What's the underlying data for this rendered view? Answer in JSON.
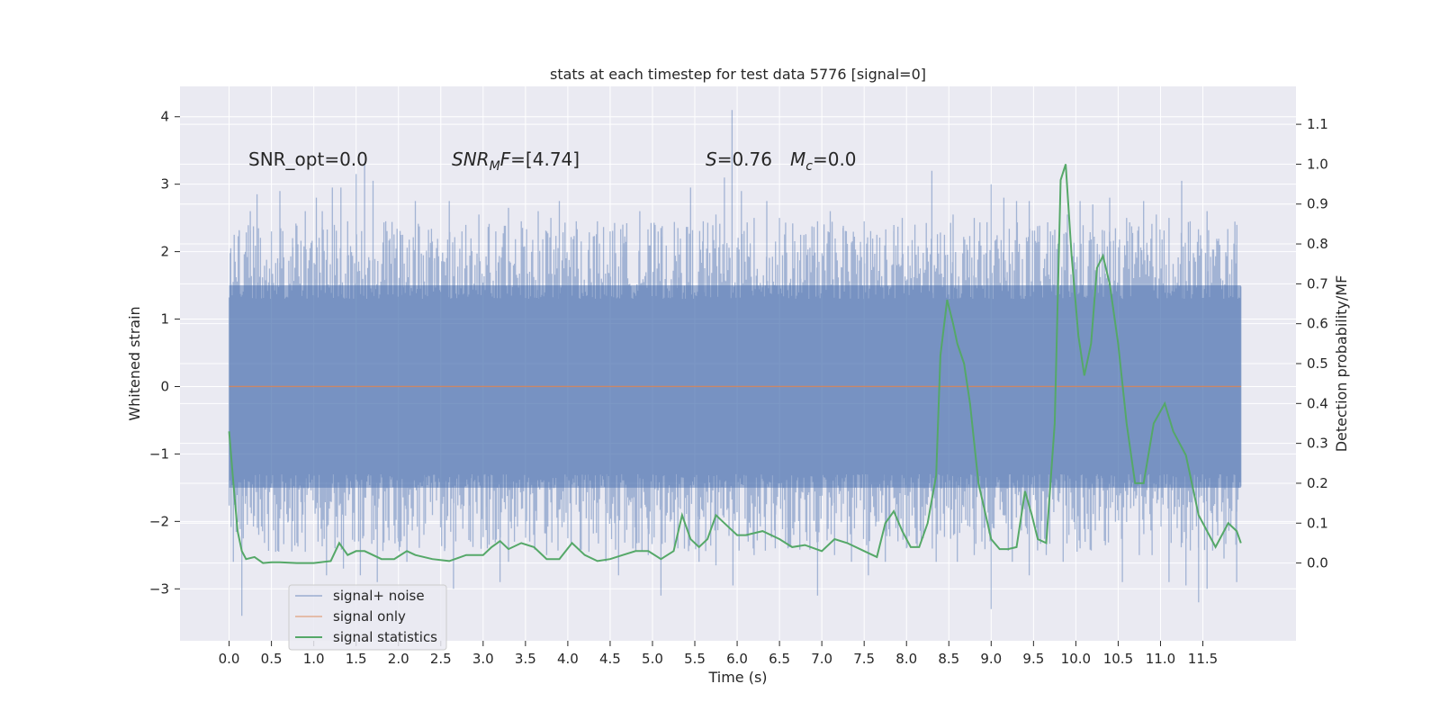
{
  "chart_data": {
    "type": "line",
    "title": "stats at each timestep for test data 5776 [signal=0]",
    "xlabel": "Time (s)",
    "ylabel": "Whitened strain",
    "ylabel_right": "Detection probability/MF",
    "xlim": [
      -0.58,
      12.6
    ],
    "ylim": [
      -3.77,
      4.45
    ],
    "ylim_right": [
      -0.195,
      1.195
    ],
    "xticks": [
      0.0,
      0.5,
      1.0,
      1.5,
      2.0,
      2.5,
      3.0,
      3.5,
      4.0,
      4.5,
      5.0,
      5.5,
      6.0,
      6.5,
      7.0,
      7.5,
      8.0,
      8.5,
      9.0,
      9.5,
      10.0,
      10.5,
      11.0,
      11.5
    ],
    "xtick_labels": [
      "0.0",
      "0.5",
      "1.0",
      "1.5",
      "2.0",
      "2.5",
      "3.0",
      "3.5",
      "4.0",
      "4.5",
      "5.0",
      "5.5",
      "6.0",
      "6.5",
      "7.0",
      "7.5",
      "8.0",
      "8.5",
      "9.0",
      "9.5",
      "10.0",
      "10.5",
      "11.0",
      "11.5"
    ],
    "yticks": [
      4,
      3,
      2,
      1,
      0,
      -1,
      -2,
      -3
    ],
    "ytick_labels": [
      "4",
      "3",
      "2",
      "1",
      "0",
      "−1",
      "−2",
      "−3"
    ],
    "yticks_right": [
      1.1,
      1.0,
      0.9,
      0.8,
      0.7,
      0.6,
      0.5,
      0.4,
      0.3,
      0.2,
      0.1,
      0.0
    ],
    "ytick_labels_right": [
      "1.1",
      "1.0",
      "0.9",
      "0.8",
      "0.7",
      "0.6",
      "0.5",
      "0.4",
      "0.3",
      "0.2",
      "0.1",
      "0.0"
    ],
    "grid": true,
    "legend_position": "lower-left",
    "noise": {
      "x_range": [
        0.0,
        11.95
      ],
      "band": [
        -1.5,
        1.5
      ],
      "upper_peaks": [
        [
          0.02,
          2.05
        ],
        [
          0.12,
          2.3
        ],
        [
          0.25,
          2.6
        ],
        [
          0.33,
          2.85
        ],
        [
          0.5,
          2.3
        ],
        [
          0.6,
          2.9
        ],
        [
          0.75,
          2.2
        ],
        [
          0.9,
          2.6
        ],
        [
          1.03,
          2.8
        ],
        [
          1.1,
          2.6
        ],
        [
          1.22,
          2.95
        ],
        [
          1.32,
          2.95
        ],
        [
          1.4,
          2.45
        ],
        [
          1.5,
          3.15
        ],
        [
          1.6,
          3.3
        ],
        [
          1.7,
          3.05
        ],
        [
          1.85,
          2.45
        ],
        [
          2.05,
          2.25
        ],
        [
          2.2,
          2.75
        ],
        [
          2.4,
          2.15
        ],
        [
          2.6,
          2.75
        ],
        [
          2.75,
          2.3
        ],
        [
          2.95,
          2.55
        ],
        [
          3.15,
          2.3
        ],
        [
          3.3,
          2.65
        ],
        [
          3.45,
          2.45
        ],
        [
          3.65,
          2.6
        ],
        [
          3.8,
          2.5
        ],
        [
          3.9,
          2.75
        ],
        [
          4.1,
          2.45
        ],
        [
          4.35,
          2.45
        ],
        [
          4.5,
          2.3
        ],
        [
          4.65,
          2.4
        ],
        [
          4.85,
          2.6
        ],
        [
          5.1,
          2.35
        ],
        [
          5.3,
          2.35
        ],
        [
          5.45,
          2.95
        ],
        [
          5.6,
          2.45
        ],
        [
          5.75,
          2.55
        ],
        [
          5.85,
          3.1
        ],
        [
          5.94,
          4.1
        ],
        [
          6.05,
          2.9
        ],
        [
          6.2,
          2.5
        ],
        [
          6.35,
          2.75
        ],
        [
          6.5,
          2.5
        ],
        [
          6.75,
          2.25
        ],
        [
          6.95,
          2.45
        ],
        [
          7.1,
          2.6
        ],
        [
          7.25,
          2.35
        ],
        [
          7.5,
          2.45
        ],
        [
          7.65,
          2.25
        ],
        [
          7.85,
          2.3
        ],
        [
          7.95,
          2.5
        ],
        [
          8.1,
          2.4
        ],
        [
          8.3,
          3.2
        ],
        [
          8.55,
          2.55
        ],
        [
          8.8,
          2.5
        ],
        [
          9.0,
          3.0
        ],
        [
          9.15,
          2.8
        ],
        [
          9.3,
          2.75
        ],
        [
          9.45,
          2.75
        ],
        [
          9.7,
          2.3
        ],
        [
          9.9,
          2.55
        ],
        [
          10.05,
          2.75
        ],
        [
          10.2,
          2.7
        ],
        [
          10.4,
          2.8
        ],
        [
          10.6,
          2.5
        ],
        [
          10.8,
          2.75
        ],
        [
          10.95,
          2.55
        ],
        [
          11.1,
          2.5
        ],
        [
          11.25,
          3.05
        ],
        [
          11.35,
          2.45
        ],
        [
          11.55,
          2.6
        ],
        [
          11.7,
          2.1
        ],
        [
          11.9,
          2.1
        ]
      ],
      "lower_peaks": [
        [
          0.05,
          -2.6
        ],
        [
          0.15,
          -3.4
        ],
        [
          0.35,
          -2.2
        ],
        [
          0.55,
          -2.45
        ],
        [
          0.7,
          -2.0
        ],
        [
          0.9,
          -2.45
        ],
        [
          1.05,
          -2.3
        ],
        [
          1.15,
          -2.8
        ],
        [
          1.25,
          -2.4
        ],
        [
          1.35,
          -2.7
        ],
        [
          1.55,
          -2.8
        ],
        [
          1.75,
          -2.9
        ],
        [
          2.0,
          -2.3
        ],
        [
          2.1,
          -2.6
        ],
        [
          2.3,
          -2.2
        ],
        [
          2.55,
          -2.4
        ],
        [
          2.65,
          -3.0
        ],
        [
          2.85,
          -2.3
        ],
        [
          3.05,
          -2.4
        ],
        [
          3.2,
          -2.9
        ],
        [
          3.3,
          -2.6
        ],
        [
          3.55,
          -2.3
        ],
        [
          3.75,
          -2.5
        ],
        [
          4.0,
          -2.25
        ],
        [
          4.25,
          -2.45
        ],
        [
          4.45,
          -2.6
        ],
        [
          4.6,
          -2.8
        ],
        [
          4.8,
          -2.4
        ],
        [
          4.95,
          -2.5
        ],
        [
          5.1,
          -3.1
        ],
        [
          5.3,
          -2.4
        ],
        [
          5.55,
          -2.6
        ],
        [
          5.75,
          -2.65
        ],
        [
          5.95,
          -2.95
        ],
        [
          6.2,
          -2.5
        ],
        [
          6.45,
          -2.4
        ],
        [
          6.6,
          -2.4
        ],
        [
          6.95,
          -3.1
        ],
        [
          7.15,
          -2.5
        ],
        [
          7.35,
          -2.6
        ],
        [
          7.55,
          -2.8
        ],
        [
          7.75,
          -2.6
        ],
        [
          8.0,
          -2.4
        ],
        [
          8.2,
          -2.2
        ],
        [
          8.35,
          -2.6
        ],
        [
          8.6,
          -2.6
        ],
        [
          8.8,
          -2.5
        ],
        [
          9.0,
          -3.3
        ],
        [
          9.25,
          -2.6
        ],
        [
          9.45,
          -2.8
        ],
        [
          9.65,
          -2.5
        ],
        [
          9.85,
          -2.6
        ],
        [
          10.05,
          -2.4
        ],
        [
          10.35,
          -2.3
        ],
        [
          10.55,
          -2.9
        ],
        [
          10.75,
          -2.5
        ],
        [
          10.9,
          -2.5
        ],
        [
          11.1,
          -2.9
        ],
        [
          11.3,
          -2.95
        ],
        [
          11.45,
          -3.2
        ],
        [
          11.55,
          -3.0
        ],
        [
          11.75,
          -2.55
        ],
        [
          11.9,
          -2.9
        ]
      ]
    },
    "series": [
      {
        "name": "signal+ noise",
        "color": "#4c72b0",
        "x_range": [
          0.0,
          11.95
        ],
        "amplitude_rms": 0.7
      },
      {
        "name": "signal only",
        "color": "#dd8452",
        "x": [
          0.0,
          11.95
        ],
        "y": [
          0.0,
          0.0
        ]
      },
      {
        "name": "signal statistics",
        "color": "#55a868",
        "axis": "right",
        "x": [
          0.0,
          0.05,
          0.1,
          0.15,
          0.2,
          0.3,
          0.4,
          0.5,
          0.6,
          0.8,
          1.0,
          1.2,
          1.3,
          1.4,
          1.5,
          1.6,
          1.8,
          1.95,
          2.1,
          2.2,
          2.4,
          2.6,
          2.8,
          3.0,
          3.1,
          3.2,
          3.3,
          3.45,
          3.6,
          3.75,
          3.9,
          4.05,
          4.2,
          4.35,
          4.5,
          4.65,
          4.8,
          4.95,
          5.1,
          5.25,
          5.35,
          5.45,
          5.55,
          5.65,
          5.75,
          5.85,
          6.0,
          6.1,
          6.3,
          6.5,
          6.65,
          6.8,
          7.0,
          7.15,
          7.3,
          7.5,
          7.65,
          7.75,
          7.85,
          7.95,
          8.05,
          8.15,
          8.25,
          8.35,
          8.4,
          8.48,
          8.55,
          8.6,
          8.68,
          8.75,
          8.85,
          9.0,
          9.1,
          9.2,
          9.3,
          9.4,
          9.48,
          9.55,
          9.65,
          9.75,
          9.82,
          9.88,
          9.95,
          10.03,
          10.1,
          10.18,
          10.25,
          10.32,
          10.4,
          10.5,
          10.6,
          10.7,
          10.8,
          10.92,
          11.05,
          11.15,
          11.3,
          11.45,
          11.55,
          11.65,
          11.8,
          11.9,
          11.95
        ],
        "y": [
          0.33,
          0.2,
          0.08,
          0.03,
          0.01,
          0.015,
          0.0,
          0.002,
          0.002,
          0.0,
          0.0,
          0.005,
          0.05,
          0.02,
          0.03,
          0.03,
          0.01,
          0.01,
          0.03,
          0.02,
          0.01,
          0.005,
          0.02,
          0.02,
          0.04,
          0.055,
          0.035,
          0.05,
          0.04,
          0.01,
          0.01,
          0.05,
          0.02,
          0.005,
          0.01,
          0.02,
          0.03,
          0.03,
          0.01,
          0.03,
          0.12,
          0.06,
          0.04,
          0.06,
          0.12,
          0.1,
          0.07,
          0.07,
          0.08,
          0.06,
          0.04,
          0.045,
          0.03,
          0.06,
          0.05,
          0.03,
          0.015,
          0.1,
          0.13,
          0.08,
          0.04,
          0.04,
          0.1,
          0.22,
          0.52,
          0.66,
          0.6,
          0.55,
          0.5,
          0.4,
          0.2,
          0.06,
          0.035,
          0.035,
          0.04,
          0.18,
          0.12,
          0.06,
          0.05,
          0.35,
          0.96,
          1.0,
          0.77,
          0.57,
          0.47,
          0.55,
          0.74,
          0.77,
          0.7,
          0.55,
          0.35,
          0.2,
          0.2,
          0.35,
          0.4,
          0.33,
          0.27,
          0.12,
          0.08,
          0.04,
          0.1,
          0.08,
          0.05
        ]
      }
    ],
    "annotations": [
      {
        "plain": "SNR_opt=0.0"
      },
      {
        "italic": "SNR",
        "sub": "M",
        "rest_italic": "F",
        "rest": "=[4.74]"
      },
      {
        "italic": "S",
        "rest": "=0.76"
      },
      {
        "italic": "M",
        "sub": "c",
        "rest": "=0.0"
      }
    ]
  }
}
